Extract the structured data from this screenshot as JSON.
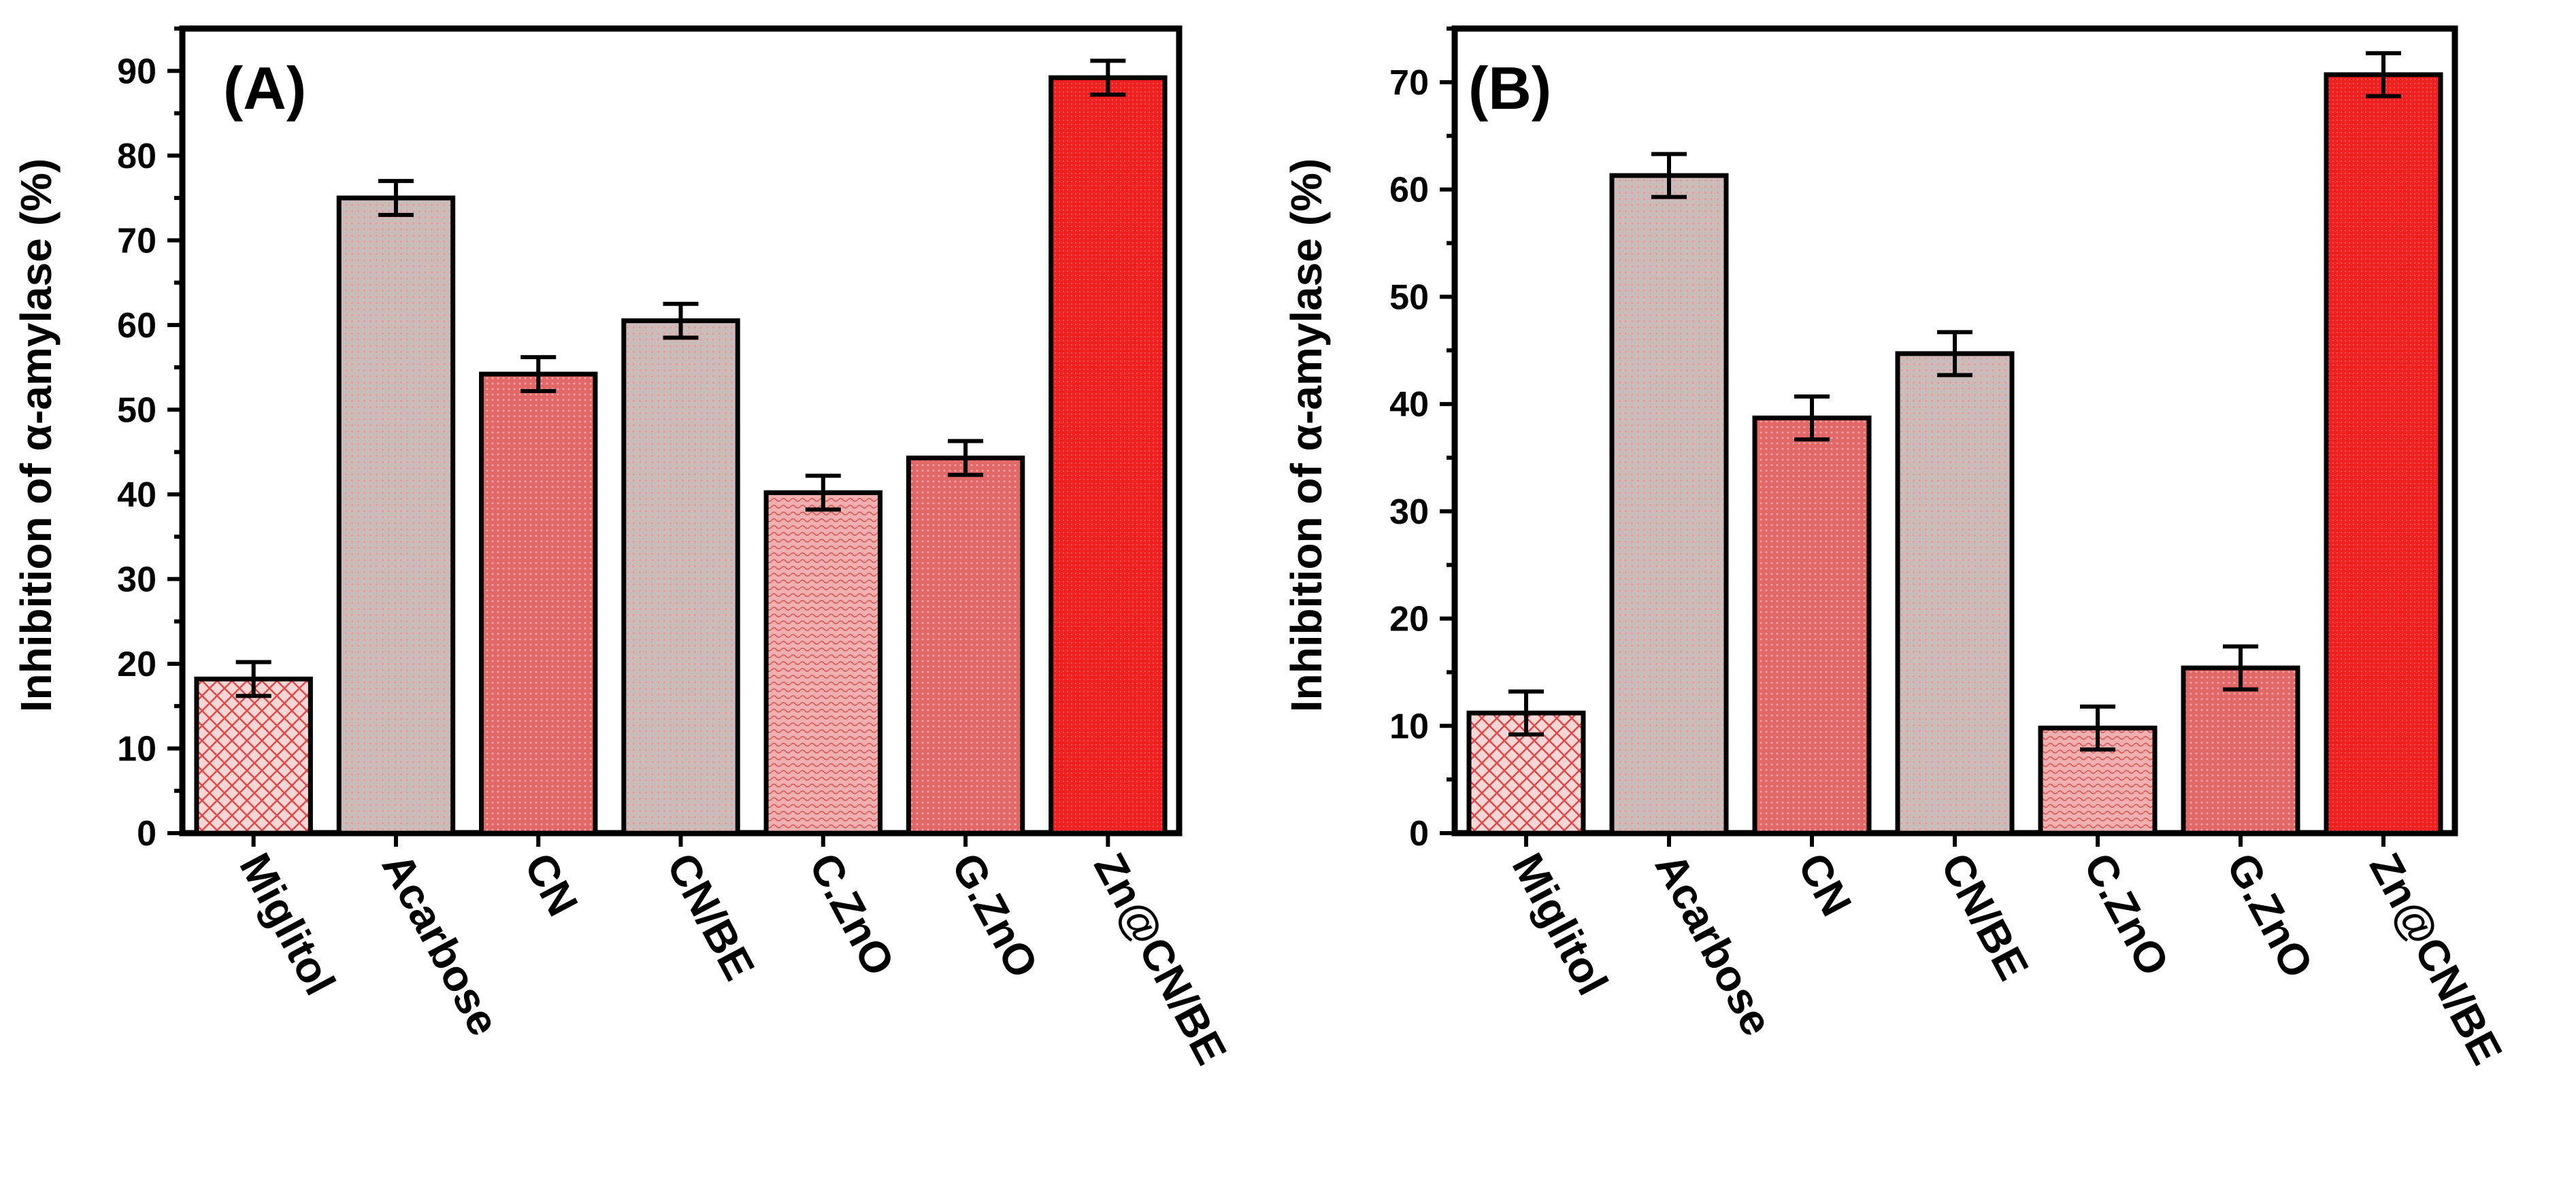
{
  "chart_data": [
    {
      "type": "bar",
      "panel_label": "(A)",
      "ylabel": "Inhibition of α-amylase (%)",
      "xlabel": "",
      "ylim": [
        0,
        95
      ],
      "yticks": [
        "0",
        "10",
        "20",
        "30",
        "40",
        "50",
        "60",
        "70",
        "80",
        "90"
      ],
      "categories": [
        "Miglitol",
        "Acarbose",
        "CN",
        "CN/BE",
        "C.ZnO",
        "G.ZnO",
        "Zn@CN/BE"
      ],
      "values": [
        18.2,
        75.0,
        54.2,
        60.5,
        40.2,
        44.3,
        89.2
      ],
      "errors": [
        2.0,
        2.0,
        2.0,
        2.0,
        2.0,
        2.0,
        2.0
      ]
    },
    {
      "type": "bar",
      "panel_label": "(B)",
      "ylabel": "Inhibition of α-amylase (%)",
      "xlabel": "",
      "ylim": [
        0,
        75
      ],
      "yticks": [
        "0",
        "10",
        "20",
        "30",
        "40",
        "50",
        "60",
        "70"
      ],
      "categories": [
        "Miglitol",
        "Acarbose",
        "CN",
        "CN/BE",
        "C.ZnO",
        "G.ZnO",
        "Zn@CN/BE"
      ],
      "values": [
        11.2,
        61.3,
        38.7,
        44.7,
        9.8,
        15.4,
        70.7
      ],
      "errors": [
        2.0,
        2.0,
        2.0,
        2.0,
        2.0,
        2.0,
        2.0
      ]
    }
  ],
  "bar_styles": [
    {
      "fill": "#f2c8c8",
      "pattern": "crosshatch",
      "stroke": "#e05a5a"
    },
    {
      "fill": "#c8bcbc",
      "pattern": "dots",
      "stroke": "#e88a8a"
    },
    {
      "fill": "#dc8282",
      "pattern": "fine-dots",
      "stroke": "#c85050"
    },
    {
      "fill": "#cbb4b4",
      "pattern": "dots",
      "stroke": "#e08a8a"
    },
    {
      "fill": "#eaa0a0",
      "pattern": "waves",
      "stroke": "#c86060"
    },
    {
      "fill": "#e06e6e",
      "pattern": "fine-dots",
      "stroke": "#b84040"
    },
    {
      "fill": "#ee2222",
      "pattern": "fine-dots",
      "stroke": "#b81010"
    }
  ]
}
